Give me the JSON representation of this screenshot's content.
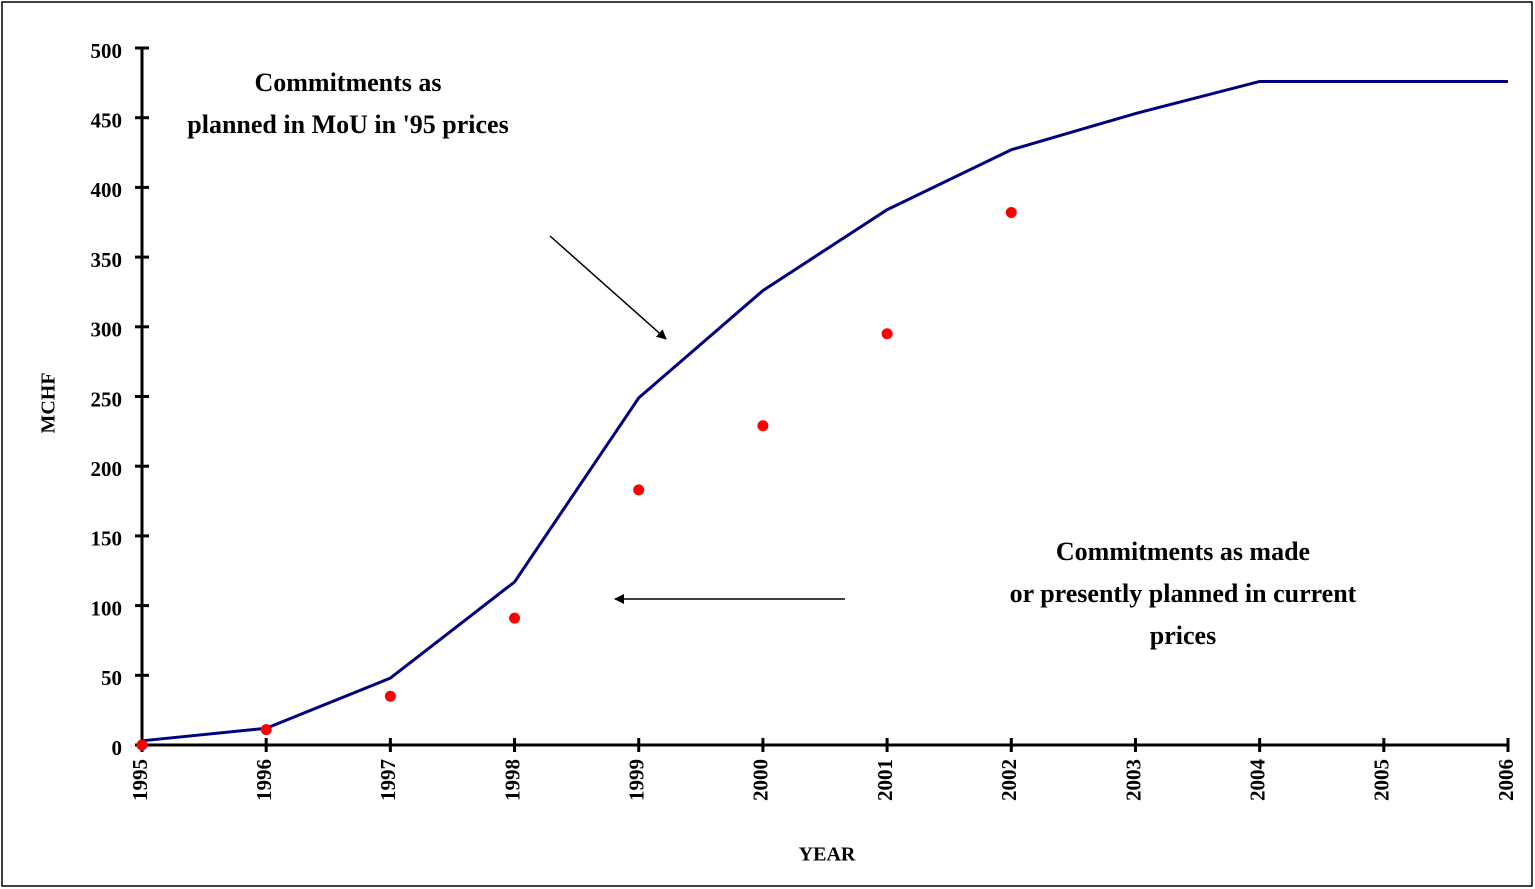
{
  "chart_data": {
    "type": "line",
    "x_label": "YEAR",
    "y_label": "MCHF",
    "x": [
      1995,
      1996,
      1997,
      1998,
      1999,
      2000,
      2001,
      2002,
      2003,
      2004,
      2005,
      2006
    ],
    "series": [
      {
        "color": "#000080",
        "style": "line",
        "values": [
          3,
          12,
          48,
          117,
          249,
          326,
          384,
          427,
          453,
          476,
          476,
          476
        ]
      },
      {
        "color": "#ff0000",
        "style": "points",
        "values": [
          0,
          11,
          35,
          91,
          183,
          229,
          295,
          382,
          null,
          null,
          null,
          null
        ]
      }
    ],
    "xlim": [
      1995,
      2006
    ],
    "xticks": [
      1995,
      1996,
      1997,
      1998,
      1999,
      2000,
      2001,
      2002,
      2003,
      2004,
      2005,
      2006
    ],
    "ylim": [
      0,
      500
    ],
    "yticks": [
      0,
      50,
      100,
      150,
      200,
      250,
      300,
      350,
      400,
      450,
      500
    ],
    "annotations": [
      [
        "Commitments as",
        "planned in MoU in '95 prices"
      ],
      [
        "Commitments as made",
        "or presently planned in current",
        "prices"
      ]
    ]
  }
}
